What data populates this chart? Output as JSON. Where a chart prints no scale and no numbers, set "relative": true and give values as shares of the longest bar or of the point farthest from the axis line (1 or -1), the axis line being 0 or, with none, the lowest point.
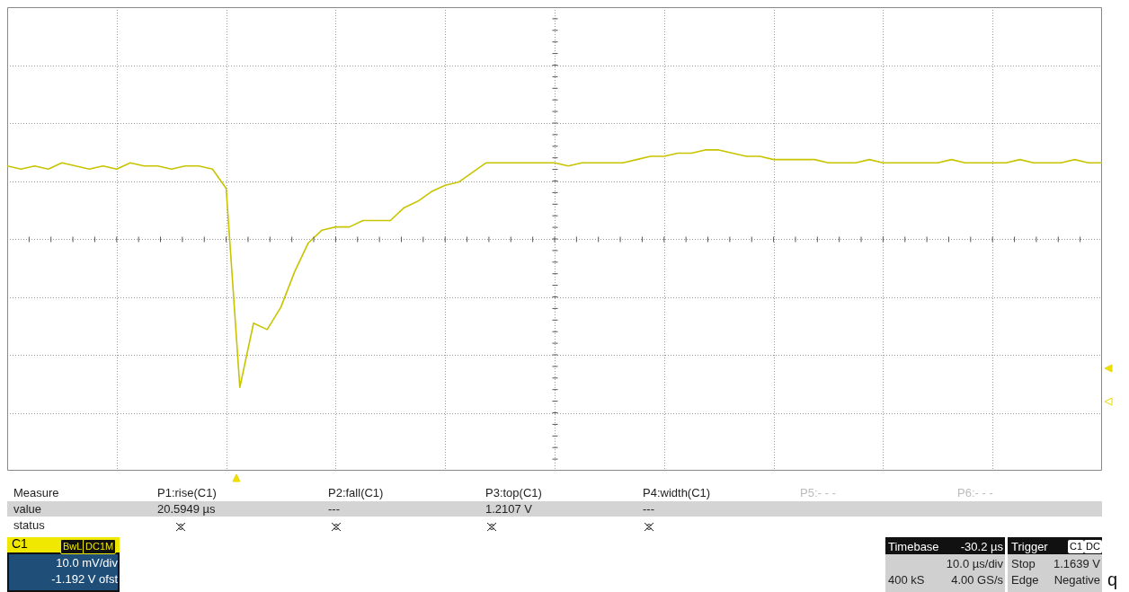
{
  "chart_data": {
    "type": "line",
    "relative": true,
    "grid": true,
    "legend": false,
    "marker": "none",
    "line_style": "solid",
    "categories": [
      null,
      null,
      null,
      null,
      null,
      null,
      null,
      null,
      null,
      null,
      null,
      null,
      null,
      null,
      null,
      null,
      null,
      null,
      null,
      null,
      null,
      null,
      null,
      null,
      null,
      null,
      null,
      null,
      null,
      null,
      null,
      null,
      null,
      null,
      null,
      null,
      null,
      null,
      null,
      null,
      null,
      null,
      null,
      null,
      null,
      null,
      null,
      null,
      null,
      null,
      null,
      null,
      null,
      null,
      null,
      null,
      null,
      null,
      null,
      null,
      null,
      null,
      null,
      null,
      null,
      null,
      null,
      null,
      null,
      null,
      null,
      null,
      null,
      null,
      null,
      null,
      null,
      null,
      null,
      null,
      null
    ],
    "series": [
      {
        "color": "#c8c400",
        "values": [
          0.95,
          0.94,
          0.95,
          0.94,
          0.96,
          0.95,
          0.94,
          0.95,
          0.94,
          0.96,
          0.95,
          0.95,
          0.94,
          0.95,
          0.95,
          0.94,
          0.88,
          0.26,
          0.46,
          0.44,
          0.51,
          0.62,
          0.71,
          0.75,
          0.76,
          0.76,
          0.78,
          0.78,
          0.78,
          0.82,
          0.84,
          0.87,
          0.89,
          0.9,
          0.93,
          0.96,
          0.96,
          0.96,
          0.96,
          0.96,
          0.96,
          0.95,
          0.96,
          0.96,
          0.96,
          0.96,
          0.97,
          0.98,
          0.98,
          0.99,
          0.99,
          1,
          1,
          0.99,
          0.98,
          0.98,
          0.97,
          0.97,
          0.97,
          0.97,
          0.96,
          0.96,
          0.96,
          0.97,
          0.96,
          0.96,
          0.96,
          0.96,
          0.96,
          0.97,
          0.96,
          0.96,
          0.96,
          0.96,
          0.97,
          0.96,
          0.96,
          0.96,
          0.97,
          0.96,
          0.96
        ]
      }
    ],
    "annotations": [
      "Measure",
      "P1:rise(C1)",
      "P2:fall(C1)",
      "P3:top(C1)",
      "P4:width(C1)",
      "P5:- - -",
      "P6:- - -",
      "value",
      "20.5949 µs",
      "---",
      "1.2107 V",
      "---",
      "status",
      "C1",
      "BwL",
      "DC1M",
      "10.0 mV/div",
      "-1.192 V ofst",
      "Timebase",
      "-30.2 µs",
      "10.0 µs/div",
      "400 kS",
      "4.00 GS/s",
      "Trigger",
      "C1",
      "DC",
      "Stop",
      "1.1639 V",
      "Edge",
      "Negative",
      "q"
    ]
  }
}
